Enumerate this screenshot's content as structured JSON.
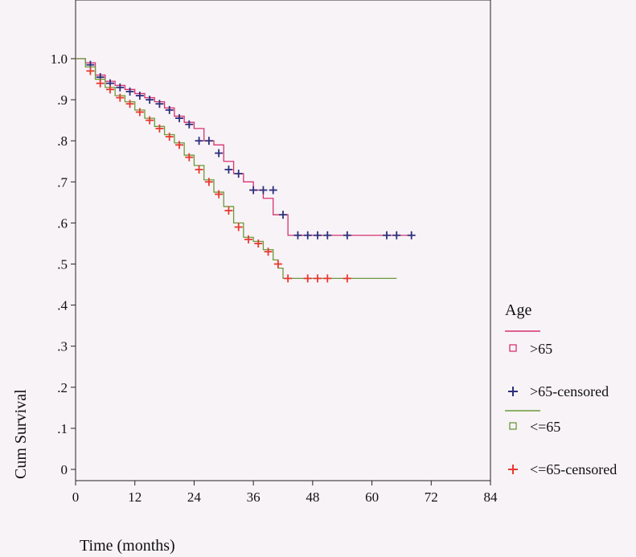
{
  "chart_data": {
    "type": "line",
    "subtype": "kaplan-meier",
    "xlabel": "Time (months)",
    "ylabel": "Cum Survival",
    "xlim": [
      0,
      84
    ],
    "ylim": [
      0,
      1.0
    ],
    "x_ticks": [
      0,
      12,
      24,
      36,
      48,
      60,
      72,
      84
    ],
    "y_ticks": [
      0,
      0.1,
      0.2,
      0.3,
      0.4,
      0.5,
      0.6,
      0.7,
      0.8,
      0.9,
      1.0
    ],
    "y_tick_labels": [
      "0",
      ".1",
      ".2",
      ".3",
      ".4",
      ".5",
      ".6",
      ".7",
      ".8",
      ".9",
      "1.0"
    ],
    "legend_title": "Age",
    "legend_position": "right",
    "grid": false,
    "series": [
      {
        "name": ">65",
        "censored_name": ">65-censored",
        "line_color": "#d6336f",
        "marker_color": "#2e2f7a",
        "x": [
          2,
          4,
          6,
          8,
          10,
          12,
          14,
          16,
          18,
          20,
          22,
          24,
          26,
          28,
          30,
          32,
          34,
          36,
          38,
          40,
          43,
          68
        ],
        "y": [
          0.99,
          0.96,
          0.945,
          0.935,
          0.925,
          0.915,
          0.905,
          0.895,
          0.88,
          0.86,
          0.845,
          0.83,
          0.8,
          0.79,
          0.75,
          0.72,
          0.7,
          0.68,
          0.66,
          0.62,
          0.57,
          0.57
        ],
        "censored_x": [
          3,
          5,
          7,
          9,
          11,
          13,
          15,
          17,
          19,
          21,
          23,
          25,
          27,
          29,
          31,
          33,
          36,
          38,
          40,
          42,
          45,
          47,
          49,
          51,
          55,
          63,
          65,
          68
        ],
        "censored_y": [
          0.985,
          0.955,
          0.94,
          0.93,
          0.92,
          0.91,
          0.9,
          0.89,
          0.875,
          0.855,
          0.84,
          0.8,
          0.8,
          0.77,
          0.73,
          0.72,
          0.68,
          0.68,
          0.68,
          0.62,
          0.57,
          0.57,
          0.57,
          0.57,
          0.57,
          0.57,
          0.57,
          0.57
        ]
      },
      {
        "name": "<=65",
        "censored_name": "<=65-censored",
        "line_color": "#6a9a3a",
        "marker_color": "#e8392f",
        "x": [
          2,
          4,
          6,
          8,
          10,
          12,
          14,
          16,
          18,
          20,
          22,
          24,
          26,
          28,
          30,
          32,
          34,
          36,
          38,
          40,
          41,
          42,
          65
        ],
        "y": [
          0.98,
          0.95,
          0.93,
          0.91,
          0.895,
          0.875,
          0.855,
          0.835,
          0.815,
          0.795,
          0.765,
          0.74,
          0.705,
          0.675,
          0.64,
          0.6,
          0.565,
          0.555,
          0.535,
          0.51,
          0.49,
          0.465,
          0.465
        ],
        "censored_x": [
          3,
          5,
          7,
          9,
          11,
          13,
          15,
          17,
          19,
          21,
          23,
          25,
          27,
          29,
          31,
          33,
          35,
          37,
          39,
          41,
          43,
          47,
          49,
          51,
          55
        ],
        "censored_y": [
          0.97,
          0.94,
          0.925,
          0.905,
          0.89,
          0.87,
          0.85,
          0.83,
          0.81,
          0.79,
          0.76,
          0.73,
          0.7,
          0.67,
          0.63,
          0.59,
          0.56,
          0.55,
          0.53,
          0.5,
          0.465,
          0.465,
          0.465,
          0.465,
          0.465
        ]
      }
    ]
  }
}
